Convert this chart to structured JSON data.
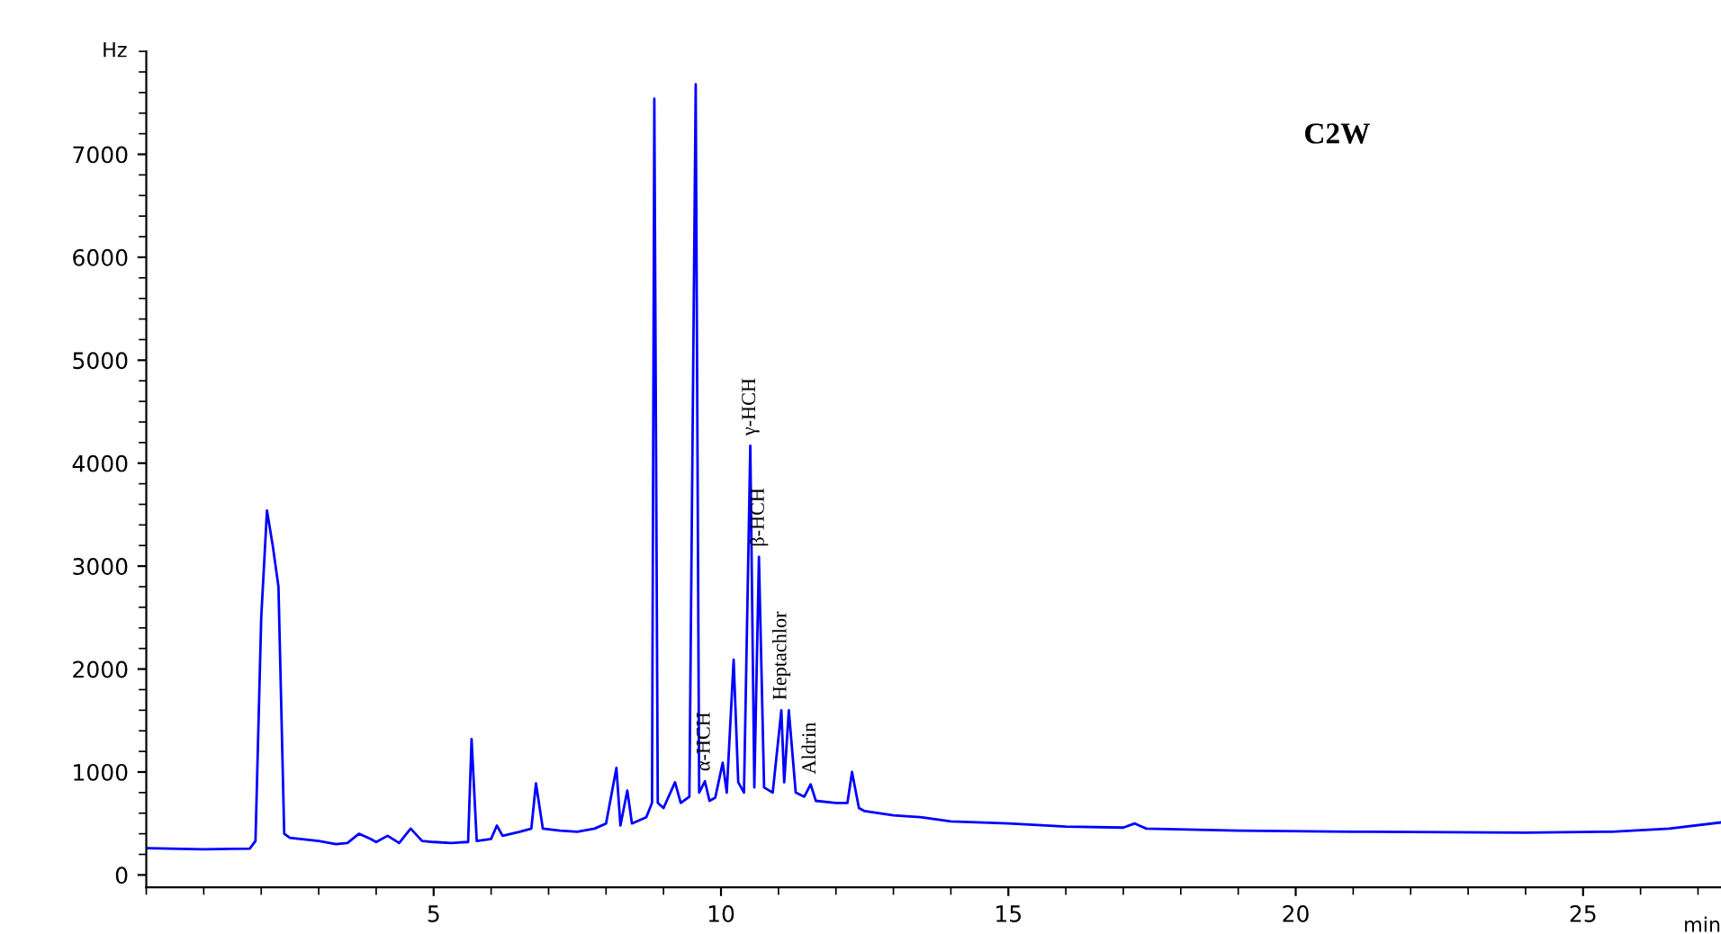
{
  "chart_data": {
    "type": "line",
    "title": "C2W",
    "xlabel": "min",
    "ylabel": "Hz",
    "series": [
      {
        "color": "#0000ff",
        "x": [
          0.03,
          1.0,
          1.8,
          1.9,
          2.0,
          2.1,
          2.2,
          2.25,
          2.3,
          2.4,
          2.5,
          3.0,
          3.3,
          3.5,
          3.7,
          3.9,
          4.0,
          4.2,
          4.4,
          4.6,
          4.8,
          5.0,
          5.3,
          5.6,
          5.66,
          5.75,
          6.0,
          6.1,
          6.2,
          6.5,
          6.7,
          6.78,
          6.9,
          7.2,
          7.5,
          7.8,
          8.0,
          8.18,
          8.25,
          8.37,
          8.45,
          8.7,
          8.8,
          8.84,
          8.9,
          9.0,
          9.2,
          9.3,
          9.45,
          9.56,
          9.62,
          9.72,
          9.8,
          9.9,
          10.03,
          10.1,
          10.22,
          10.3,
          10.4,
          10.51,
          10.58,
          10.66,
          10.75,
          10.9,
          11.05,
          11.1,
          11.18,
          11.3,
          11.45,
          11.56,
          11.65,
          12.0,
          12.2,
          12.28,
          12.4,
          12.5,
          13.0,
          13.5,
          14.0,
          15.0,
          16.0,
          17.0,
          17.2,
          17.4,
          19.0,
          21.0,
          24.0,
          25.5,
          26.5,
          27.4
        ],
        "values": [
          260,
          250,
          255,
          330,
          2500,
          3540,
          3200,
          3000,
          2800,
          400,
          360,
          330,
          300,
          310,
          400,
          350,
          320,
          380,
          310,
          450,
          330,
          320,
          310,
          320,
          1320,
          330,
          350,
          480,
          380,
          420,
          450,
          890,
          450,
          430,
          420,
          450,
          500,
          1040,
          480,
          820,
          500,
          560,
          700,
          7540,
          700,
          650,
          900,
          700,
          760,
          7680,
          800,
          910,
          720,
          750,
          1090,
          800,
          2090,
          900,
          800,
          4170,
          850,
          3090,
          850,
          800,
          1600,
          900,
          1600,
          800,
          760,
          880,
          720,
          700,
          700,
          1000,
          650,
          620,
          580,
          560,
          520,
          500,
          470,
          460,
          500,
          450,
          430,
          420,
          410,
          420,
          450,
          510
        ]
      }
    ],
    "xlim": [
      0,
      27.4
    ],
    "ylim": [
      -120,
      8000
    ],
    "xticks": [
      5,
      10,
      15,
      20,
      25
    ],
    "yticks": [
      0,
      1000,
      2000,
      3000,
      4000,
      5000,
      6000,
      7000
    ],
    "grid": false,
    "annotations": [
      {
        "text": "α-HCH",
        "x": 9.72,
        "y": 910
      },
      {
        "text": "γ-HCH",
        "x": 10.51,
        "y": 4170
      },
      {
        "text": "β-HCH",
        "x": 10.66,
        "y": 3090
      },
      {
        "text": "Heptachlor",
        "x": 11.05,
        "y": 1600
      },
      {
        "text": "Aldrin",
        "x": 11.56,
        "y": 880
      }
    ]
  }
}
